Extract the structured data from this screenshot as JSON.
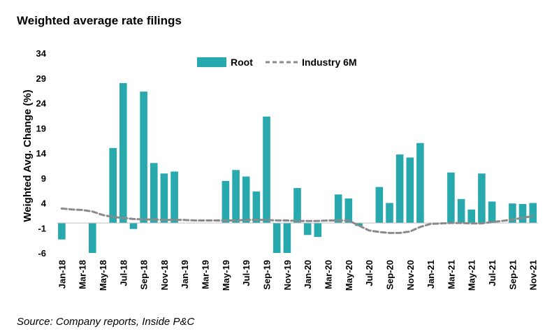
{
  "chart_data": {
    "type": "bar",
    "title": "Weighted average rate filings",
    "source": "Source: Company reports, Inside P&C",
    "ylabel": "Weighted Avg. Change (%)",
    "xlabel": "",
    "ylim": [
      -6,
      34
    ],
    "yticks": [
      34,
      29,
      24,
      19,
      14,
      9,
      4,
      -1,
      -6
    ],
    "colors": {
      "bar": "#27a9ad",
      "line": "#8a8a8a"
    },
    "categories": [
      "Jan-18",
      "Feb-18",
      "Mar-18",
      "Apr-18",
      "May-18",
      "Jun-18",
      "Jul-18",
      "Aug-18",
      "Sep-18",
      "Oct-18",
      "Nov-18",
      "Dec-18",
      "Jan-19",
      "Feb-19",
      "Mar-19",
      "Apr-19",
      "May-19",
      "Jun-19",
      "Jul-19",
      "Aug-19",
      "Sep-19",
      "Oct-19",
      "Nov-19",
      "Dec-19",
      "Jan-20",
      "Feb-20",
      "Mar-20",
      "Apr-20",
      "May-20",
      "Jun-20",
      "Jul-20",
      "Aug-20",
      "Sep-20",
      "Oct-20",
      "Nov-20",
      "Dec-20",
      "Jan-21",
      "Feb-21",
      "Mar-21",
      "Apr-21",
      "May-21",
      "Jun-21",
      "Jul-21",
      "Aug-21",
      "Sep-21",
      "Oct-21",
      "Nov-21"
    ],
    "tick_labels": [
      "Jan-18",
      "Mar-18",
      "May-18",
      "Jul-18",
      "Sep-18",
      "Nov-18",
      "Jan-19",
      "Mar-19",
      "May-19",
      "Jul-19",
      "Sep-19",
      "Nov-19",
      "Jan-20",
      "Mar-20",
      "May-20",
      "Jul-20",
      "Sep-20",
      "Nov-20",
      "Jan-21",
      "Mar-21",
      "May-21",
      "Jul-21",
      "Sep-21",
      "Nov-21"
    ],
    "series": [
      {
        "name": "Root",
        "type": "bar",
        "values": [
          -3.3,
          null,
          null,
          -6.5,
          null,
          15.0,
          28.0,
          -1.2,
          26.3,
          12.0,
          9.9,
          10.3,
          null,
          null,
          null,
          null,
          8.4,
          10.6,
          9.3,
          6.3,
          21.3,
          -6.5,
          -6.5,
          7.0,
          -2.4,
          -2.8,
          null,
          5.7,
          4.9,
          -0.6,
          null,
          7.2,
          4.0,
          13.7,
          13.1,
          16.0,
          null,
          null,
          10.1,
          4.8,
          2.7,
          9.9,
          4.3,
          null,
          3.9,
          3.8,
          4.0
        ]
      },
      {
        "name": "Industry 6M",
        "type": "line",
        "values": [
          2.9,
          2.7,
          2.6,
          2.3,
          1.6,
          1.2,
          1.0,
          0.8,
          0.7,
          0.7,
          0.6,
          0.6,
          0.6,
          0.5,
          0.5,
          0.5,
          0.5,
          0.5,
          0.6,
          0.6,
          0.6,
          0.5,
          0.5,
          0.4,
          0.4,
          0.4,
          0.5,
          0.5,
          0.5,
          -0.5,
          -1.5,
          -1.8,
          -2.0,
          -2.0,
          -1.7,
          -0.8,
          -0.2,
          -0.1,
          0.0,
          0.0,
          -0.1,
          -0.1,
          0.2,
          0.4,
          0.7,
          1.0,
          1.4
        ]
      }
    ],
    "legend": {
      "position": "top-center",
      "entries": [
        "Root",
        "Industry 6M"
      ]
    }
  }
}
